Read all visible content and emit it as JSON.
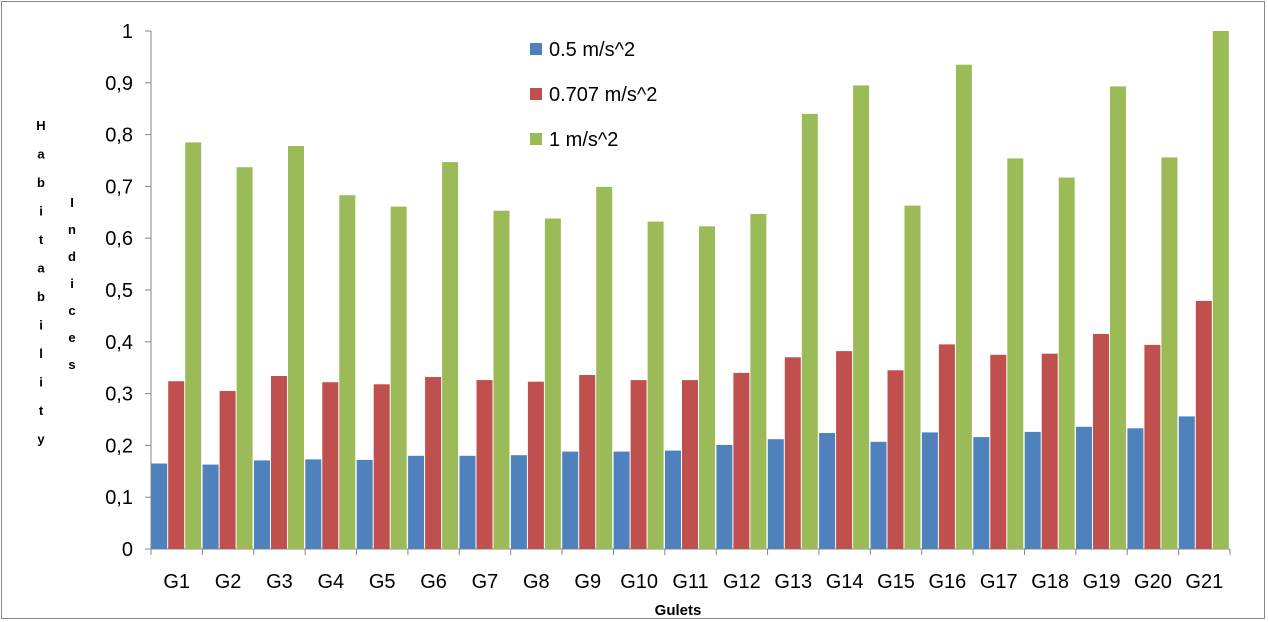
{
  "chart_data": {
    "type": "bar",
    "title": "",
    "xlabel": "Gulets",
    "ylabel_line1": "Habitability",
    "ylabel_line2": "Indices",
    "ylim": [
      0,
      1
    ],
    "yticks": [
      "0",
      "0,1",
      "0,2",
      "0,3",
      "0,4",
      "0,5",
      "0,6",
      "0,7",
      "0,8",
      "0,9",
      "1"
    ],
    "categories": [
      "G1",
      "G2",
      "G3",
      "G4",
      "G5",
      "G6",
      "G7",
      "G8",
      "G9",
      "G10",
      "G11",
      "G12",
      "G13",
      "G14",
      "G15",
      "G16",
      "G17",
      "G18",
      "G19",
      "G20",
      "G21"
    ],
    "legend_position": "top-center",
    "grid": false,
    "series": [
      {
        "name": "0.5 m/s^2",
        "color": "#4f81bd",
        "values": [
          0.165,
          0.163,
          0.171,
          0.173,
          0.172,
          0.18,
          0.18,
          0.181,
          0.188,
          0.188,
          0.19,
          0.201,
          0.212,
          0.224,
          0.207,
          0.225,
          0.216,
          0.226,
          0.236,
          0.233,
          0.256
        ]
      },
      {
        "name": "0.707 m/s^2",
        "color": "#c0504d",
        "values": [
          0.324,
          0.305,
          0.334,
          0.322,
          0.318,
          0.332,
          0.326,
          0.323,
          0.336,
          0.326,
          0.326,
          0.34,
          0.37,
          0.382,
          0.345,
          0.395,
          0.375,
          0.377,
          0.415,
          0.394,
          0.479
        ]
      },
      {
        "name": "1 m/s^2",
        "color": "#9bbb59",
        "values": [
          0.785,
          0.737,
          0.778,
          0.683,
          0.661,
          0.747,
          0.653,
          0.638,
          0.699,
          0.632,
          0.623,
          0.647,
          0.84,
          0.895,
          0.663,
          0.935,
          0.754,
          0.717,
          0.893,
          0.756,
          1.0
        ]
      }
    ]
  }
}
